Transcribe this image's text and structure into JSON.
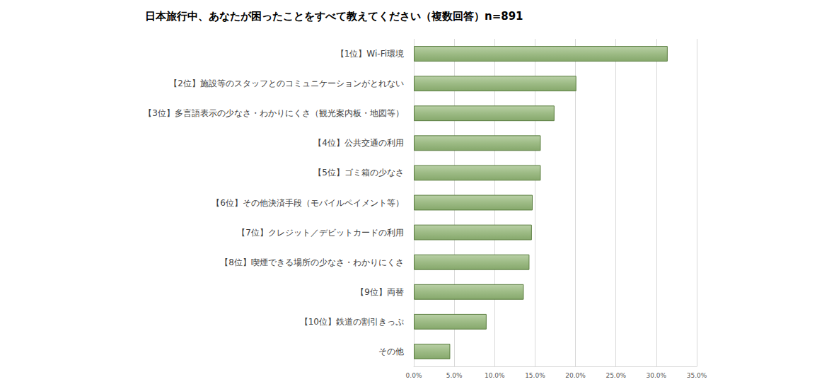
{
  "chart_data": {
    "type": "bar",
    "orientation": "horizontal",
    "title": "日本旅行中、あなたが困ったことをすべて教えてください（複数回答）n=891",
    "categories": [
      "【1位】Wi-Fi環境",
      "【2位】施設等のスタッフとのコミュニケーションがとれない",
      "【3位】多言語表示の少なさ・わかりにくさ（観光案内板・地図等）",
      "【4位】公共交通の利用",
      "【5位】ゴミ箱の少なさ",
      "【6位】その他決済手段（モバイルペイメント等）",
      "【7位】クレジット／デビットカードの利用",
      "【8位】喫煙できる場所の少なさ・わかりにくさ",
      "【9位】両替",
      "【10位】鉄道の割引きっぷ",
      "その他"
    ],
    "values": [
      31.4,
      20.1,
      17.4,
      15.7,
      15.7,
      14.7,
      14.6,
      14.3,
      13.6,
      9.0,
      4.5
    ],
    "color": "#9dbb85",
    "xlim": [
      0,
      35
    ],
    "xticks": [
      {
        "value": 0,
        "label": "0.0%"
      },
      {
        "value": 5,
        "label": "5.0%"
      },
      {
        "value": 10,
        "label": "10.0%"
      },
      {
        "value": 15,
        "label": "15.0%"
      },
      {
        "value": 20,
        "label": "20.0%"
      },
      {
        "value": 25,
        "label": "25.0%"
      },
      {
        "value": 30,
        "label": "30.0%"
      },
      {
        "value": 35,
        "label": "35.0%"
      }
    ],
    "grid": true,
    "data_labels": false
  }
}
